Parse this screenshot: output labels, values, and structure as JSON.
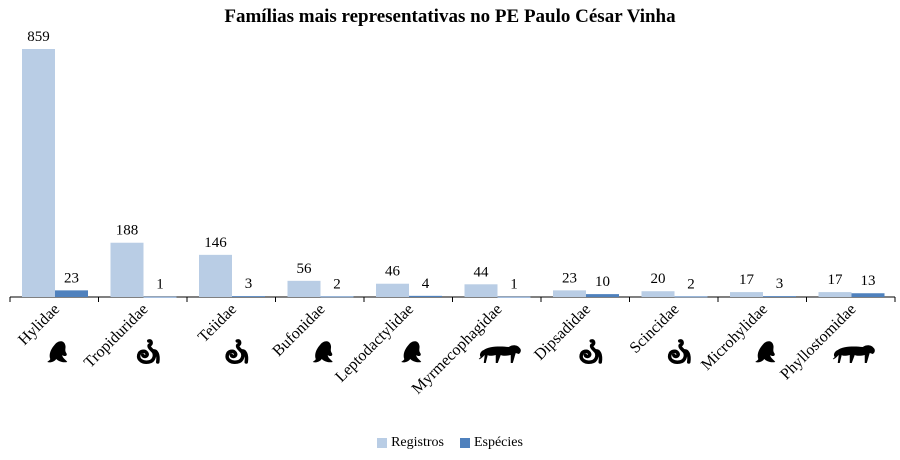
{
  "chart_data": {
    "type": "bar",
    "title": "Famílias mais representativas no PE Paulo César Vinha",
    "categories": [
      "Hylidae",
      "Tropiduridae",
      "Teiidae",
      "Bufonidae",
      "Leptodactylidae",
      "Myrmecophagidae",
      "Dipsadidae",
      "Scincidae",
      "Microhylidae",
      "Phyllostomidae"
    ],
    "category_icons": [
      "frog-icon",
      "snake-icon",
      "snake-icon",
      "frog-icon",
      "frog-icon",
      "jaguar-icon",
      "snake-icon",
      "snake-icon",
      "frog-icon",
      "jaguar-icon"
    ],
    "series": [
      {
        "name": "Registros",
        "color": "#b9cde5",
        "values": [
          859,
          188,
          146,
          56,
          46,
          44,
          23,
          20,
          17,
          17
        ]
      },
      {
        "name": "Espécies",
        "color": "#4f81bd",
        "values": [
          23,
          1,
          3,
          2,
          4,
          1,
          10,
          2,
          3,
          13
        ]
      }
    ],
    "ylim": [
      0,
      900
    ],
    "grid": false,
    "data_labels": true,
    "legend_position": "bottom",
    "xlabel": "",
    "ylabel": ""
  }
}
